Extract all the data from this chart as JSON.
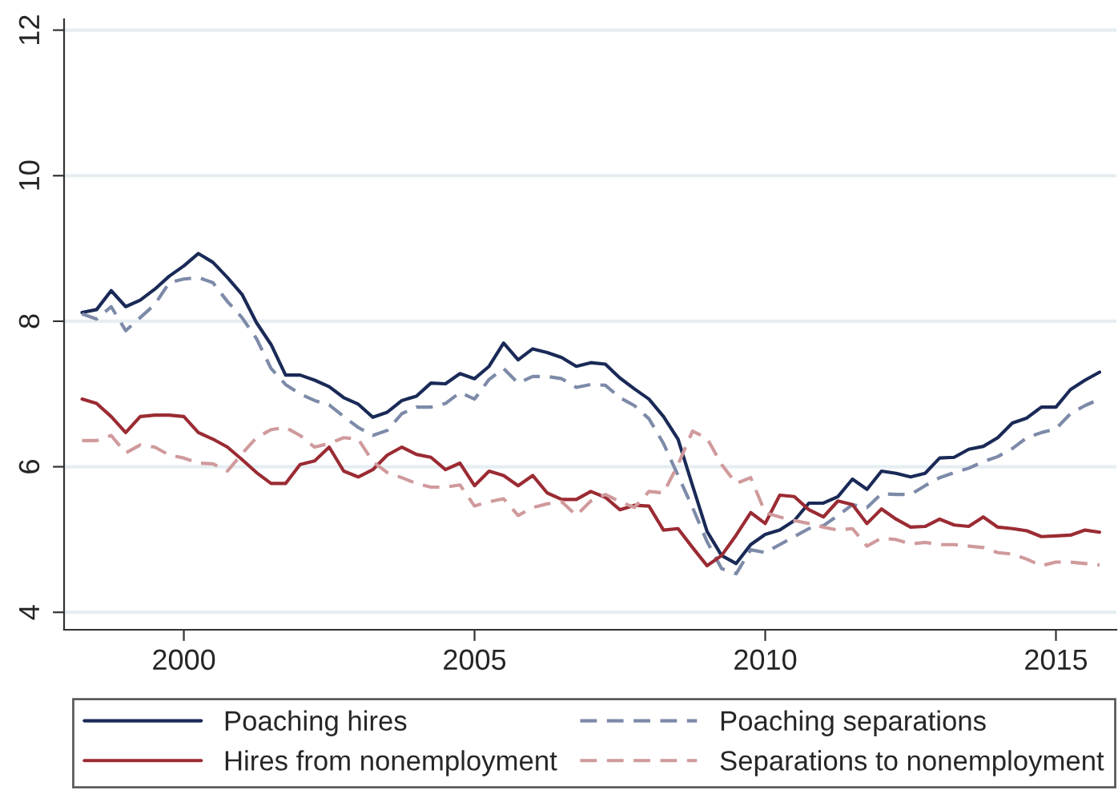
{
  "chart_data": {
    "type": "line",
    "x": [
      1998.25,
      1998.5,
      1998.75,
      1999,
      1999.25,
      1999.5,
      1999.75,
      2000,
      2000.25,
      2000.5,
      2000.75,
      2001,
      2001.25,
      2001.5,
      2001.75,
      2002,
      2002.25,
      2002.5,
      2002.75,
      2003,
      2003.25,
      2003.5,
      2003.75,
      2004,
      2004.25,
      2004.5,
      2004.75,
      2005,
      2005.25,
      2005.5,
      2005.75,
      2006,
      2006.25,
      2006.5,
      2006.75,
      2007,
      2007.25,
      2007.5,
      2007.75,
      2008,
      2008.25,
      2008.5,
      2008.75,
      2009,
      2009.25,
      2009.5,
      2009.75,
      2010,
      2010.25,
      2010.5,
      2010.75,
      2011,
      2011.25,
      2011.5,
      2011.75,
      2012,
      2012.25,
      2012.5,
      2012.75,
      2013,
      2013.25,
      2013.5,
      2013.75,
      2014,
      2014.25,
      2014.5,
      2014.75,
      2015,
      2015.25,
      2015.5,
      2015.75
    ],
    "series": [
      {
        "name": "Poaching hires",
        "color": "#1a2a57",
        "line_style": "solid",
        "values": [
          8.12,
          8.16,
          8.42,
          8.2,
          8.29,
          8.44,
          8.62,
          8.76,
          8.93,
          8.81,
          8.6,
          8.37,
          7.98,
          7.68,
          7.26,
          7.26,
          7.19,
          7.1,
          6.95,
          6.86,
          6.68,
          6.75,
          6.91,
          6.97,
          7.15,
          7.14,
          7.28,
          7.21,
          7.38,
          7.7,
          7.47,
          7.62,
          7.57,
          7.5,
          7.38,
          7.43,
          7.41,
          7.22,
          7.07,
          6.93,
          6.69,
          6.38,
          5.74,
          5.11,
          4.78,
          4.67,
          4.93,
          5.07,
          5.13,
          5.26,
          5.5,
          5.5,
          5.59,
          5.83,
          5.69,
          5.94,
          5.91,
          5.86,
          5.91,
          6.12,
          6.13,
          6.24,
          6.28,
          6.4,
          6.6,
          6.67,
          6.82,
          6.82,
          7.06,
          7.19,
          7.3
        ]
      },
      {
        "name": "Poaching separations",
        "color": "#7d8aa8",
        "line_style": "dashed",
        "values": [
          8.1,
          8.03,
          8.2,
          7.87,
          8.05,
          8.23,
          8.53,
          8.58,
          8.6,
          8.53,
          8.27,
          8.05,
          7.76,
          7.35,
          7.13,
          7.0,
          6.91,
          6.85,
          6.69,
          6.54,
          6.43,
          6.5,
          6.73,
          6.82,
          6.82,
          6.87,
          7.02,
          6.93,
          7.2,
          7.35,
          7.15,
          7.24,
          7.24,
          7.21,
          7.09,
          7.13,
          7.12,
          6.95,
          6.84,
          6.66,
          6.32,
          5.88,
          5.44,
          4.97,
          4.6,
          4.53,
          4.86,
          4.82,
          4.93,
          5.04,
          5.15,
          5.19,
          5.33,
          5.48,
          5.44,
          5.63,
          5.62,
          5.62,
          5.74,
          5.85,
          5.92,
          5.98,
          6.07,
          6.14,
          6.25,
          6.4,
          6.47,
          6.52,
          6.73,
          6.84,
          6.93
        ]
      },
      {
        "name": "Hires from nonemployment",
        "color": "#9b2b33",
        "line_style": "solid",
        "values": [
          6.93,
          6.87,
          6.69,
          6.47,
          6.69,
          6.71,
          6.71,
          6.69,
          6.47,
          6.38,
          6.27,
          6.1,
          5.92,
          5.77,
          5.77,
          6.03,
          6.08,
          6.27,
          5.94,
          5.86,
          5.96,
          6.16,
          6.27,
          6.17,
          6.13,
          5.96,
          6.05,
          5.74,
          5.94,
          5.88,
          5.74,
          5.88,
          5.64,
          5.55,
          5.55,
          5.66,
          5.58,
          5.41,
          5.47,
          5.46,
          5.13,
          5.15,
          4.89,
          4.64,
          4.78,
          5.06,
          5.37,
          5.22,
          5.61,
          5.59,
          5.41,
          5.31,
          5.53,
          5.48,
          5.22,
          5.42,
          5.28,
          5.17,
          5.18,
          5.28,
          5.2,
          5.18,
          5.31,
          5.17,
          5.15,
          5.12,
          5.04,
          5.05,
          5.06,
          5.13,
          5.1
        ]
      },
      {
        "name": "Separations to nonemployment",
        "color": "#d09a9c",
        "line_style": "dashed",
        "values": [
          6.36,
          6.36,
          6.43,
          6.19,
          6.3,
          6.27,
          6.16,
          6.12,
          6.05,
          6.04,
          5.94,
          6.18,
          6.4,
          6.51,
          6.54,
          6.43,
          6.27,
          6.32,
          6.4,
          6.38,
          6.07,
          5.92,
          5.85,
          5.77,
          5.72,
          5.72,
          5.75,
          5.46,
          5.52,
          5.56,
          5.33,
          5.44,
          5.49,
          5.52,
          5.33,
          5.53,
          5.62,
          5.52,
          5.44,
          5.66,
          5.64,
          6.03,
          6.49,
          6.39,
          6.03,
          5.77,
          5.85,
          5.37,
          5.31,
          5.26,
          5.22,
          5.17,
          5.13,
          5.15,
          4.91,
          5.02,
          5.0,
          4.94,
          4.96,
          4.93,
          4.93,
          4.91,
          4.89,
          4.82,
          4.8,
          4.73,
          4.64,
          4.69,
          4.69,
          4.67,
          4.65
        ]
      }
    ],
    "xlim": [
      1997.94,
      2016.04
    ],
    "xticks": [
      2000,
      2005,
      2010,
      2015
    ],
    "ylim": [
      3.76,
      12.15
    ],
    "yticks": [
      4,
      6,
      8,
      10,
      12
    ],
    "grid": "y",
    "legend": "bottom",
    "marker": "none"
  }
}
